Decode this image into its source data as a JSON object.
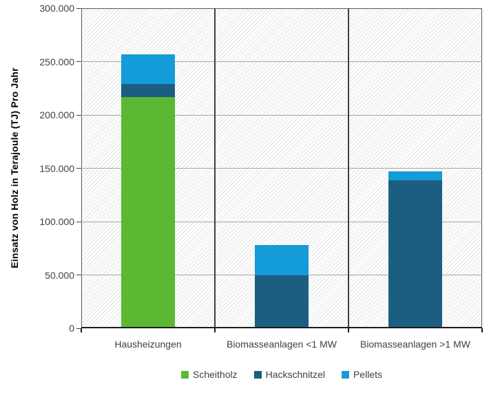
{
  "chart_data": {
    "type": "bar",
    "stacked": true,
    "title": "",
    "xlabel": "",
    "ylabel": "Einsatz von Holz in Terajoule (TJ) Pro Jahr",
    "categories": [
      "Hausheizungen",
      "Biomasseanlagen <1 MW",
      "Biomasseanlagen >1 MW"
    ],
    "series": [
      {
        "name": "Scheitholz",
        "color": "#5CB832",
        "values": [
          217000,
          0,
          0
        ]
      },
      {
        "name": "Hackschnitzel",
        "color": "#1B5E82",
        "values": [
          12000,
          50000,
          139000
        ]
      },
      {
        "name": "Pellets",
        "color": "#149CD8",
        "values": [
          28000,
          28000,
          8000
        ]
      }
    ],
    "totals": [
      257000,
      78000,
      147000
    ],
    "ylim": [
      0,
      300000
    ],
    "ytick_step": 50000,
    "ytick_labels": [
      "0",
      "50.000",
      "100.000",
      "150.000",
      "200.000",
      "250.000",
      "300.000"
    ],
    "grid": "horizontal",
    "legend_position": "bottom",
    "plot_background": "diagonal-hatch"
  },
  "colors": {
    "gridline": "#A6A6A6",
    "separator": "#3F3F3F",
    "plot_border": "#595959",
    "axis_line": "#1A1A1A",
    "hatch": "#E2E2E2",
    "text": "#404040",
    "background": "#FFFFFF"
  }
}
